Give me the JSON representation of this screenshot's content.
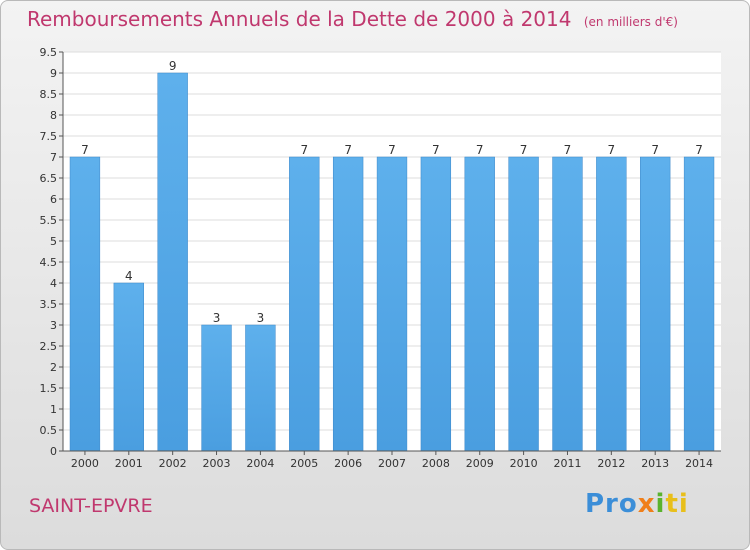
{
  "chart_data": {
    "type": "bar",
    "title": "Remboursements Annuels de la Dette de 2000 à 2014",
    "subtitle": "(en milliers d'€)",
    "categories": [
      "2000",
      "2001",
      "2002",
      "2003",
      "2004",
      "2005",
      "2006",
      "2007",
      "2008",
      "2009",
      "2010",
      "2011",
      "2012",
      "2013",
      "2014"
    ],
    "values": [
      7,
      4,
      9,
      3,
      3,
      7,
      7,
      7,
      7,
      7,
      7,
      7,
      7,
      7,
      7
    ],
    "data_labels": [
      "7",
      "4",
      "9",
      "3",
      "3",
      "7",
      "7",
      "7",
      "7",
      "7",
      "7",
      "7",
      "7",
      "7",
      "7"
    ],
    "y_ticks": [
      "0",
      "0.5",
      "1",
      "1.5",
      "2",
      "2.5",
      "3",
      "3.5",
      "4",
      "4.5",
      "5",
      "5.5",
      "6",
      "6.5",
      "7",
      "7.5",
      "8",
      "8.5",
      "9",
      "9.5"
    ],
    "ylim": [
      0,
      9.5
    ],
    "grid": true,
    "bar_color": "#4a9ee0"
  },
  "footer": {
    "commune": "SAINT-EPVRE",
    "logo_parts": [
      "Pro",
      "x",
      "i",
      "ti"
    ]
  }
}
